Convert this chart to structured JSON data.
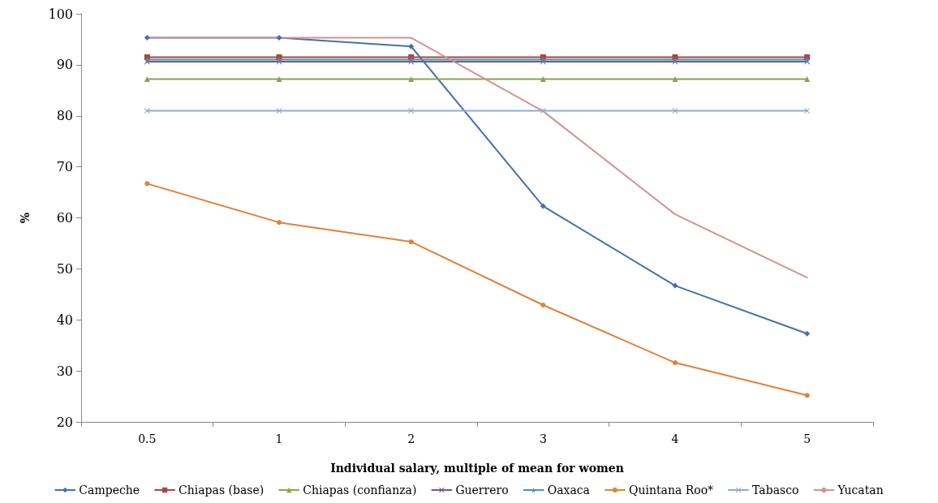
{
  "chart_data": {
    "type": "line",
    "xlabel": "Individual salary, multiple of mean for women",
    "ylabel": "%",
    "categories": [
      "0.5",
      "1",
      "2",
      "3",
      "4",
      "5"
    ],
    "series": [
      {
        "name": "Campeche",
        "color": "#4572a7",
        "marker": "diamond",
        "values": [
          95.3,
          95.3,
          93.6,
          62.3,
          46.7,
          37.3
        ]
      },
      {
        "name": "Chiapas (base)",
        "color": "#aa4643",
        "marker": "square",
        "values": [
          91.5,
          91.5,
          91.5,
          91.5,
          91.5,
          91.5
        ]
      },
      {
        "name": "Chiapas (confianza)",
        "color": "#89a54e",
        "marker": "triangle",
        "values": [
          87.2,
          87.2,
          87.2,
          87.2,
          87.2,
          87.2
        ]
      },
      {
        "name": "Guerrero",
        "color": "#71588f",
        "marker": "cross",
        "values": [
          90.6,
          90.6,
          90.6,
          90.6,
          90.6,
          90.6
        ]
      },
      {
        "name": "Oaxaca",
        "color": "#4198af",
        "marker": "star",
        "values": [
          91.0,
          91.0,
          91.0,
          91.0,
          91.0,
          91.0
        ]
      },
      {
        "name": "Quintana Roo*",
        "color": "#db843d",
        "marker": "circle",
        "values": [
          66.7,
          59.1,
          55.3,
          42.9,
          31.6,
          25.2
        ]
      },
      {
        "name": "Tabasco",
        "color": "#93a9cf",
        "marker": "cross",
        "values": [
          81.0,
          81.0,
          81.0,
          81.0,
          81.0,
          81.0
        ]
      },
      {
        "name": "Yucatan",
        "color": "#d19392",
        "marker": "none",
        "values": [
          95.3,
          95.3,
          95.3,
          80.9,
          60.7,
          48.3
        ]
      }
    ],
    "ylim": [
      20,
      100
    ],
    "yticks": [
      20,
      30,
      40,
      50,
      60,
      70,
      80,
      90,
      100
    ],
    "grid": false,
    "legend": "bottom"
  }
}
